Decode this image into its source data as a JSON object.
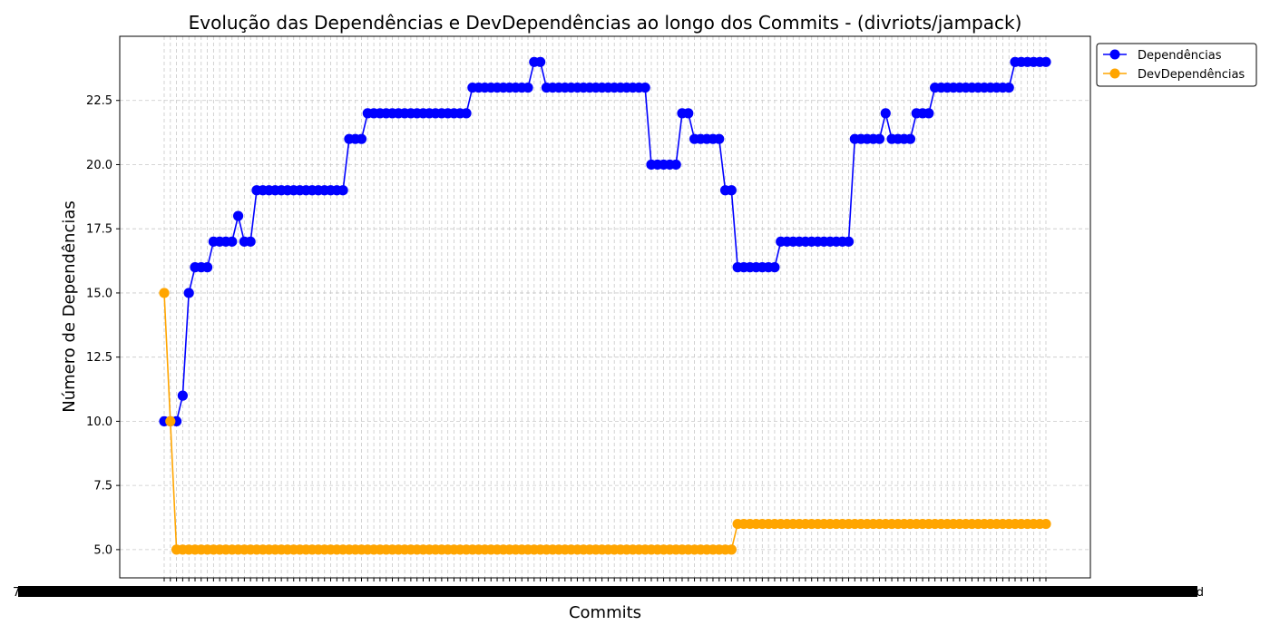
{
  "chart_data": {
    "type": "line",
    "title": "Evolução das Dependências e DevDependências ao longo dos Commits - (divriots/jampack)",
    "xlabel": "Commits",
    "ylabel": "Número de Dependências",
    "ylim": [
      3.9,
      25.0
    ],
    "yticks": [
      5.0,
      7.5,
      10.0,
      12.5,
      15.0,
      17.5,
      20.0,
      22.5
    ],
    "ytick_labels": [
      "5.0",
      "7.5",
      "10.0",
      "12.5",
      "15.0",
      "17.5",
      "20.0",
      "22.5"
    ],
    "grid": true,
    "legend": "outside-top-right",
    "commit_count": 144,
    "xtick_label_first": "7035a56",
    "xtick_label_last": "c7f2fd1d",
    "series": [
      {
        "name": "Dependências",
        "color": "#0000ff",
        "values": [
          10,
          10,
          10,
          11,
          15,
          16,
          16,
          16,
          17,
          17,
          17,
          17,
          18,
          17,
          17,
          19,
          19,
          19,
          19,
          19,
          19,
          19,
          19,
          19,
          19,
          19,
          19,
          19,
          19,
          19,
          21,
          21,
          21,
          22,
          22,
          22,
          22,
          22,
          22,
          22,
          22,
          22,
          22,
          22,
          22,
          22,
          22,
          22,
          22,
          22,
          23,
          23,
          23,
          23,
          23,
          23,
          23,
          23,
          23,
          23,
          24,
          24,
          23,
          23,
          23,
          23,
          23,
          23,
          23,
          23,
          23,
          23,
          23,
          23,
          23,
          23,
          23,
          23,
          23,
          20,
          20,
          20,
          20,
          20,
          22,
          22,
          21,
          21,
          21,
          21,
          21,
          19,
          19,
          16,
          16,
          16,
          16,
          16,
          16,
          16,
          17,
          17,
          17,
          17,
          17,
          17,
          17,
          17,
          17,
          17,
          17,
          17,
          21,
          21,
          21,
          21,
          21,
          22,
          21,
          21,
          21,
          21,
          22,
          22,
          22,
          23,
          23,
          23,
          23,
          23,
          23,
          23,
          23,
          23,
          23,
          23,
          23,
          23,
          24,
          24,
          24,
          24,
          24,
          24
        ]
      },
      {
        "name": "DevDependências",
        "color": "#ffa500",
        "values": [
          15,
          10,
          5,
          5,
          5,
          5,
          5,
          5,
          5,
          5,
          5,
          5,
          5,
          5,
          5,
          5,
          5,
          5,
          5,
          5,
          5,
          5,
          5,
          5,
          5,
          5,
          5,
          5,
          5,
          5,
          5,
          5,
          5,
          5,
          5,
          5,
          5,
          5,
          5,
          5,
          5,
          5,
          5,
          5,
          5,
          5,
          5,
          5,
          5,
          5,
          5,
          5,
          5,
          5,
          5,
          5,
          5,
          5,
          5,
          5,
          5,
          5,
          5,
          5,
          5,
          5,
          5,
          5,
          5,
          5,
          5,
          5,
          5,
          5,
          5,
          5,
          5,
          5,
          5,
          5,
          5,
          5,
          5,
          5,
          5,
          5,
          5,
          5,
          5,
          5,
          5,
          5,
          5,
          6,
          6,
          6,
          6,
          6,
          6,
          6,
          6,
          6,
          6,
          6,
          6,
          6,
          6,
          6,
          6,
          6,
          6,
          6,
          6,
          6,
          6,
          6,
          6,
          6,
          6,
          6,
          6,
          6,
          6,
          6,
          6,
          6,
          6,
          6,
          6,
          6,
          6,
          6,
          6,
          6,
          6,
          6,
          6,
          6,
          6,
          6,
          6,
          6,
          6,
          6
        ]
      }
    ]
  }
}
